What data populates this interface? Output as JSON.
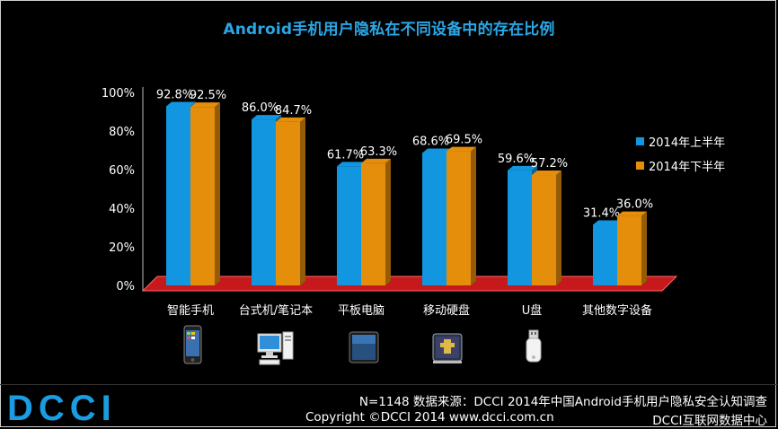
{
  "chart_data": {
    "type": "bar",
    "title": "Android手机用户隐私在不同设备中的存在比例",
    "categories": [
      "智能手机",
      "台式机/笔记本",
      "平板电脑",
      "移动硬盘",
      "U盘",
      "其他数字设备"
    ],
    "series": [
      {
        "name": "2014年上半年",
        "values": [
          92.8,
          86.0,
          61.7,
          68.6,
          59.6,
          31.4
        ],
        "labels": [
          "92.8%",
          "86.0%",
          "61.7%",
          "68.6%",
          "59.6%",
          "31.4%"
        ],
        "color": "#1296df"
      },
      {
        "name": "2014年下半年",
        "values": [
          92.5,
          84.7,
          63.3,
          69.5,
          57.2,
          36.0
        ],
        "labels": [
          "92.5%",
          "84.7%",
          "63.3%",
          "69.5%",
          "57.2%",
          "36.0%"
        ],
        "color": "#e58e0c"
      }
    ],
    "yticks": [
      "0%",
      "20%",
      "40%",
      "60%",
      "80%",
      "100%"
    ],
    "ylim": [
      0,
      100
    ],
    "legend_position": "right",
    "grid": false,
    "bar_style": "3d"
  },
  "device_icons": [
    "smartphone-icon",
    "desktop-computer-icon",
    "tablet-icon",
    "external-hard-drive-icon",
    "usb-drive-icon"
  ],
  "footer": {
    "logo": "DCCI",
    "line1": "N=1148 数据来源：DCCI 2014年中国Android手机用户隐私安全认知调查",
    "line2_left": "Copyright ©DCCI 2014 www.dcci.com.cn",
    "line2_right": "DCCI互联网数据中心"
  },
  "colors": {
    "title": "#2aa7e6",
    "background": "#000000",
    "floor": "#c6191c",
    "logo": "#1b9be0"
  }
}
